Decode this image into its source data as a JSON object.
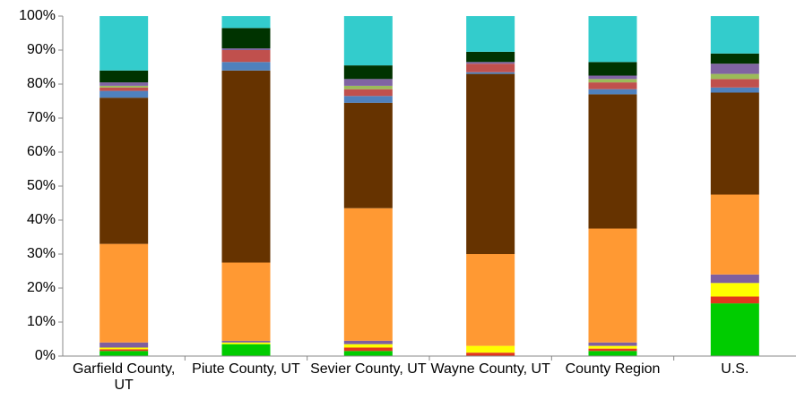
{
  "chart_data": {
    "type": "stacked-bar",
    "categories": [
      "Garfield County, UT",
      "Piute County, UT",
      "Sevier County, UT",
      "Wayne County, UT",
      "County Region",
      "U.S."
    ],
    "series": [
      {
        "color": "#00cc00",
        "values": [
          1.5,
          3.5,
          1.5,
          0,
          1.5,
          15.5
        ]
      },
      {
        "color": "#e2371d",
        "values": [
          0.5,
          0,
          1,
          1,
          0.7,
          2
        ]
      },
      {
        "color": "#ffff00",
        "values": [
          0.5,
          0.5,
          1,
          2,
          0.8,
          4
        ]
      },
      {
        "color": "#7f5f9f",
        "values": [
          1.5,
          0.5,
          1,
          0,
          1,
          2.5
        ]
      },
      {
        "color": "#ff9933",
        "values": [
          29,
          23,
          39,
          27,
          33.5,
          23.5
        ]
      },
      {
        "color": "#663300",
        "values": [
          43,
          56.5,
          31,
          53,
          39.5,
          30
        ]
      },
      {
        "color": "#4f81bd",
        "values": [
          2,
          2.5,
          2,
          0.5,
          1.5,
          1.5
        ]
      },
      {
        "color": "#c0504d",
        "values": [
          1,
          3.5,
          2,
          2.5,
          2,
          2.5
        ]
      },
      {
        "color": "#9bbb59",
        "values": [
          0.5,
          0,
          1,
          0,
          1,
          1.5
        ]
      },
      {
        "color": "#8064a2",
        "values": [
          1,
          0.5,
          2,
          0.5,
          1,
          3
        ]
      },
      {
        "color": "#003300",
        "values": [
          3.5,
          6,
          4,
          3,
          4,
          3
        ]
      },
      {
        "color": "#33cccc",
        "values": [
          16,
          3.5,
          14.5,
          10.5,
          13.5,
          11
        ]
      }
    ],
    "ylim": [
      0,
      100
    ],
    "yticks": [
      {
        "value": 0,
        "label": "0%"
      },
      {
        "value": 10,
        "label": "10%"
      },
      {
        "value": 20,
        "label": "20%"
      },
      {
        "value": 30,
        "label": "30%"
      },
      {
        "value": 40,
        "label": "40%"
      },
      {
        "value": 50,
        "label": "50%"
      },
      {
        "value": 60,
        "label": "60%"
      },
      {
        "value": 70,
        "label": "70%"
      },
      {
        "value": 80,
        "label": "80%"
      },
      {
        "value": 90,
        "label": "90%"
      },
      {
        "value": 100,
        "label": "100%"
      }
    ]
  }
}
